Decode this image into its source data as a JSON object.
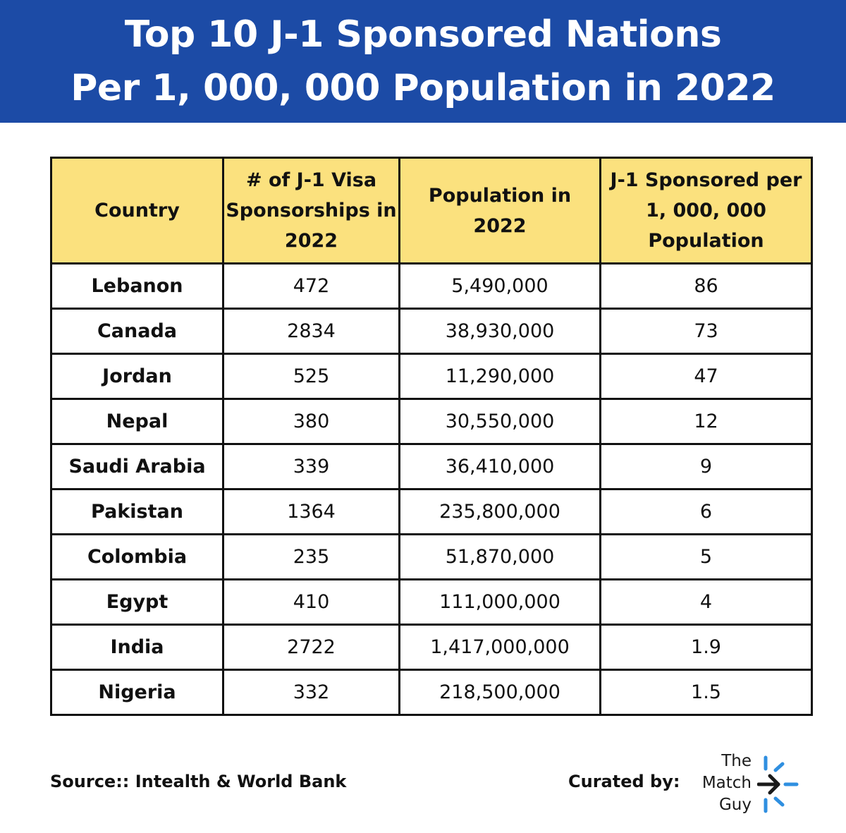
{
  "header": {
    "title_line1": "Top 10 J-1 Sponsored Nations",
    "title_line2": "Per 1, 000, 000 Population in 2022"
  },
  "chart_data": {
    "type": "table",
    "columns": [
      "Country",
      "# of J-1 Visa Sponsorships in 2022",
      "Population in 2022",
      "J-1 Sponsored per 1, 000, 000 Population"
    ],
    "rows": [
      [
        "Lebanon",
        "472",
        "5,490,000",
        "86"
      ],
      [
        "Canada",
        "2834",
        "38,930,000",
        "73"
      ],
      [
        "Jordan",
        "525",
        "11,290,000",
        "47"
      ],
      [
        "Nepal",
        "380",
        "30,550,000",
        "12"
      ],
      [
        "Saudi Arabia",
        "339",
        "36,410,000",
        "9"
      ],
      [
        "Pakistan",
        "1364",
        "235,800,000",
        "6"
      ],
      [
        "Colombia",
        "235",
        "51,870,000",
        "5"
      ],
      [
        "Egypt",
        "410",
        "111,000,000",
        "4"
      ],
      [
        "India",
        "2722",
        "1,417,000,000",
        "1.9"
      ],
      [
        "Nigeria",
        "332",
        "218,500,000",
        "1.5"
      ]
    ]
  },
  "footer": {
    "source": "Source:: Intealth & World Bank",
    "curated_label": "Curated by:",
    "logo_lines": [
      "The",
      "Match",
      "Guy"
    ],
    "logo_icon": "arrow-burst-icon"
  },
  "colors": {
    "banner": "#1c4ba6",
    "header_fill": "#fbe17e",
    "logo_accent": "#2f8fe0"
  }
}
